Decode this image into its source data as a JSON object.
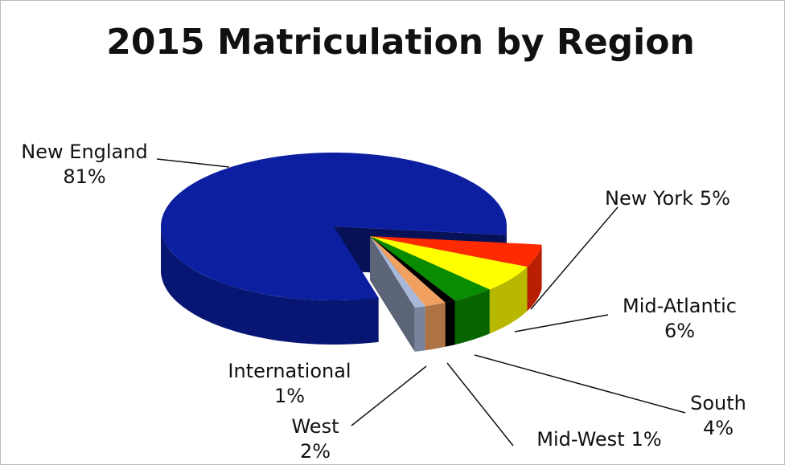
{
  "chart_data": {
    "type": "pie",
    "title": "2015 Matriculation by Region",
    "categories": [
      "New England",
      "New York",
      "Mid-Atlantic",
      "South",
      "Mid-West",
      "West",
      "International"
    ],
    "values": [
      81,
      5,
      6,
      4,
      1,
      2,
      1
    ],
    "value_labels": [
      "81%",
      "5%",
      "6%",
      "4%",
      "1%",
      "2%",
      "1%"
    ],
    "colors": [
      "#0b1fa0",
      "#ff2a00",
      "#ffff00",
      "#0a8c00",
      "#000000",
      "#f0a060",
      "#a8b8d8"
    ]
  }
}
